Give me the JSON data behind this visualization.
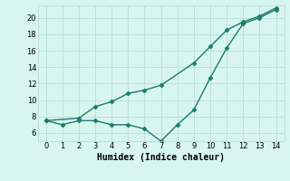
{
  "title": "",
  "xlabel": "Humidex (Indice chaleur)",
  "line1_x": [
    0,
    1,
    2,
    3,
    4,
    5,
    6,
    7,
    8,
    9,
    10,
    11,
    12,
    13,
    14
  ],
  "line1_y": [
    7.5,
    7.0,
    7.5,
    7.5,
    7.0,
    7.0,
    6.5,
    5.0,
    7.0,
    8.8,
    12.7,
    16.3,
    19.3,
    20.0,
    21.0
  ],
  "line2_x": [
    0,
    2,
    3,
    4,
    5,
    6,
    7,
    9,
    10,
    11,
    12,
    13,
    14
  ],
  "line2_y": [
    7.5,
    7.8,
    9.2,
    9.8,
    10.8,
    11.2,
    11.8,
    14.5,
    16.5,
    18.5,
    19.5,
    20.2,
    21.2
  ],
  "line_color": "#1a7a6e",
  "bg_color": "#d8f5f0",
  "grid_color": "#b8ddd8",
  "ylim": [
    5.0,
    21.5
  ],
  "xlim": [
    -0.5,
    14.5
  ],
  "yticks": [
    6,
    8,
    10,
    12,
    14,
    16,
    18,
    20
  ],
  "xticks": [
    0,
    1,
    2,
    3,
    4,
    5,
    6,
    7,
    8,
    9,
    10,
    11,
    12,
    13,
    14
  ],
  "marker": "D",
  "markersize": 2.5,
  "linewidth": 1.0,
  "tick_fontsize": 6,
  "xlabel_fontsize": 7
}
